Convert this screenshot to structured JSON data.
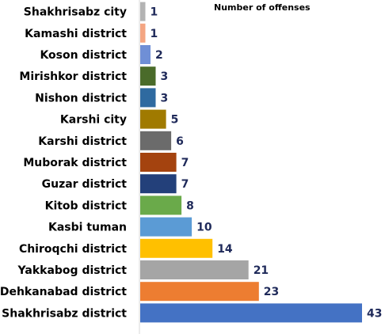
{
  "chart_data": {
    "type": "bar",
    "orientation": "horizontal",
    "title": "Number of offenses",
    "categories": [
      "Shakhrisabz city",
      "Kamashi district",
      "Koson district",
      "Mirishkor district",
      "Nishon district",
      "Karshi city",
      "Karshi district",
      "Muborak district",
      "Guzar district",
      "Kitob district",
      "Kasbi tuman",
      "Chiroqchi district",
      "Yakkabog district",
      "Dehkanabad district",
      "Shakhrisabz district"
    ],
    "values": [
      1,
      1,
      2,
      3,
      3,
      5,
      6,
      7,
      7,
      8,
      10,
      14,
      21,
      23,
      43
    ],
    "colors": [
      "#b3b3b3",
      "#f4a582",
      "#6f8fd6",
      "#4a6b2a",
      "#2f6aa0",
      "#a07a00",
      "#6b6b6b",
      "#a4430f",
      "#23407a",
      "#6aaa4a",
      "#5b9bd5",
      "#ffc000",
      "#a5a5a5",
      "#ed7d31",
      "#4472c4"
    ],
    "value_label_color": "#1f2a5a",
    "xlim": [
      0,
      43
    ],
    "grid": false,
    "legend": "none"
  }
}
